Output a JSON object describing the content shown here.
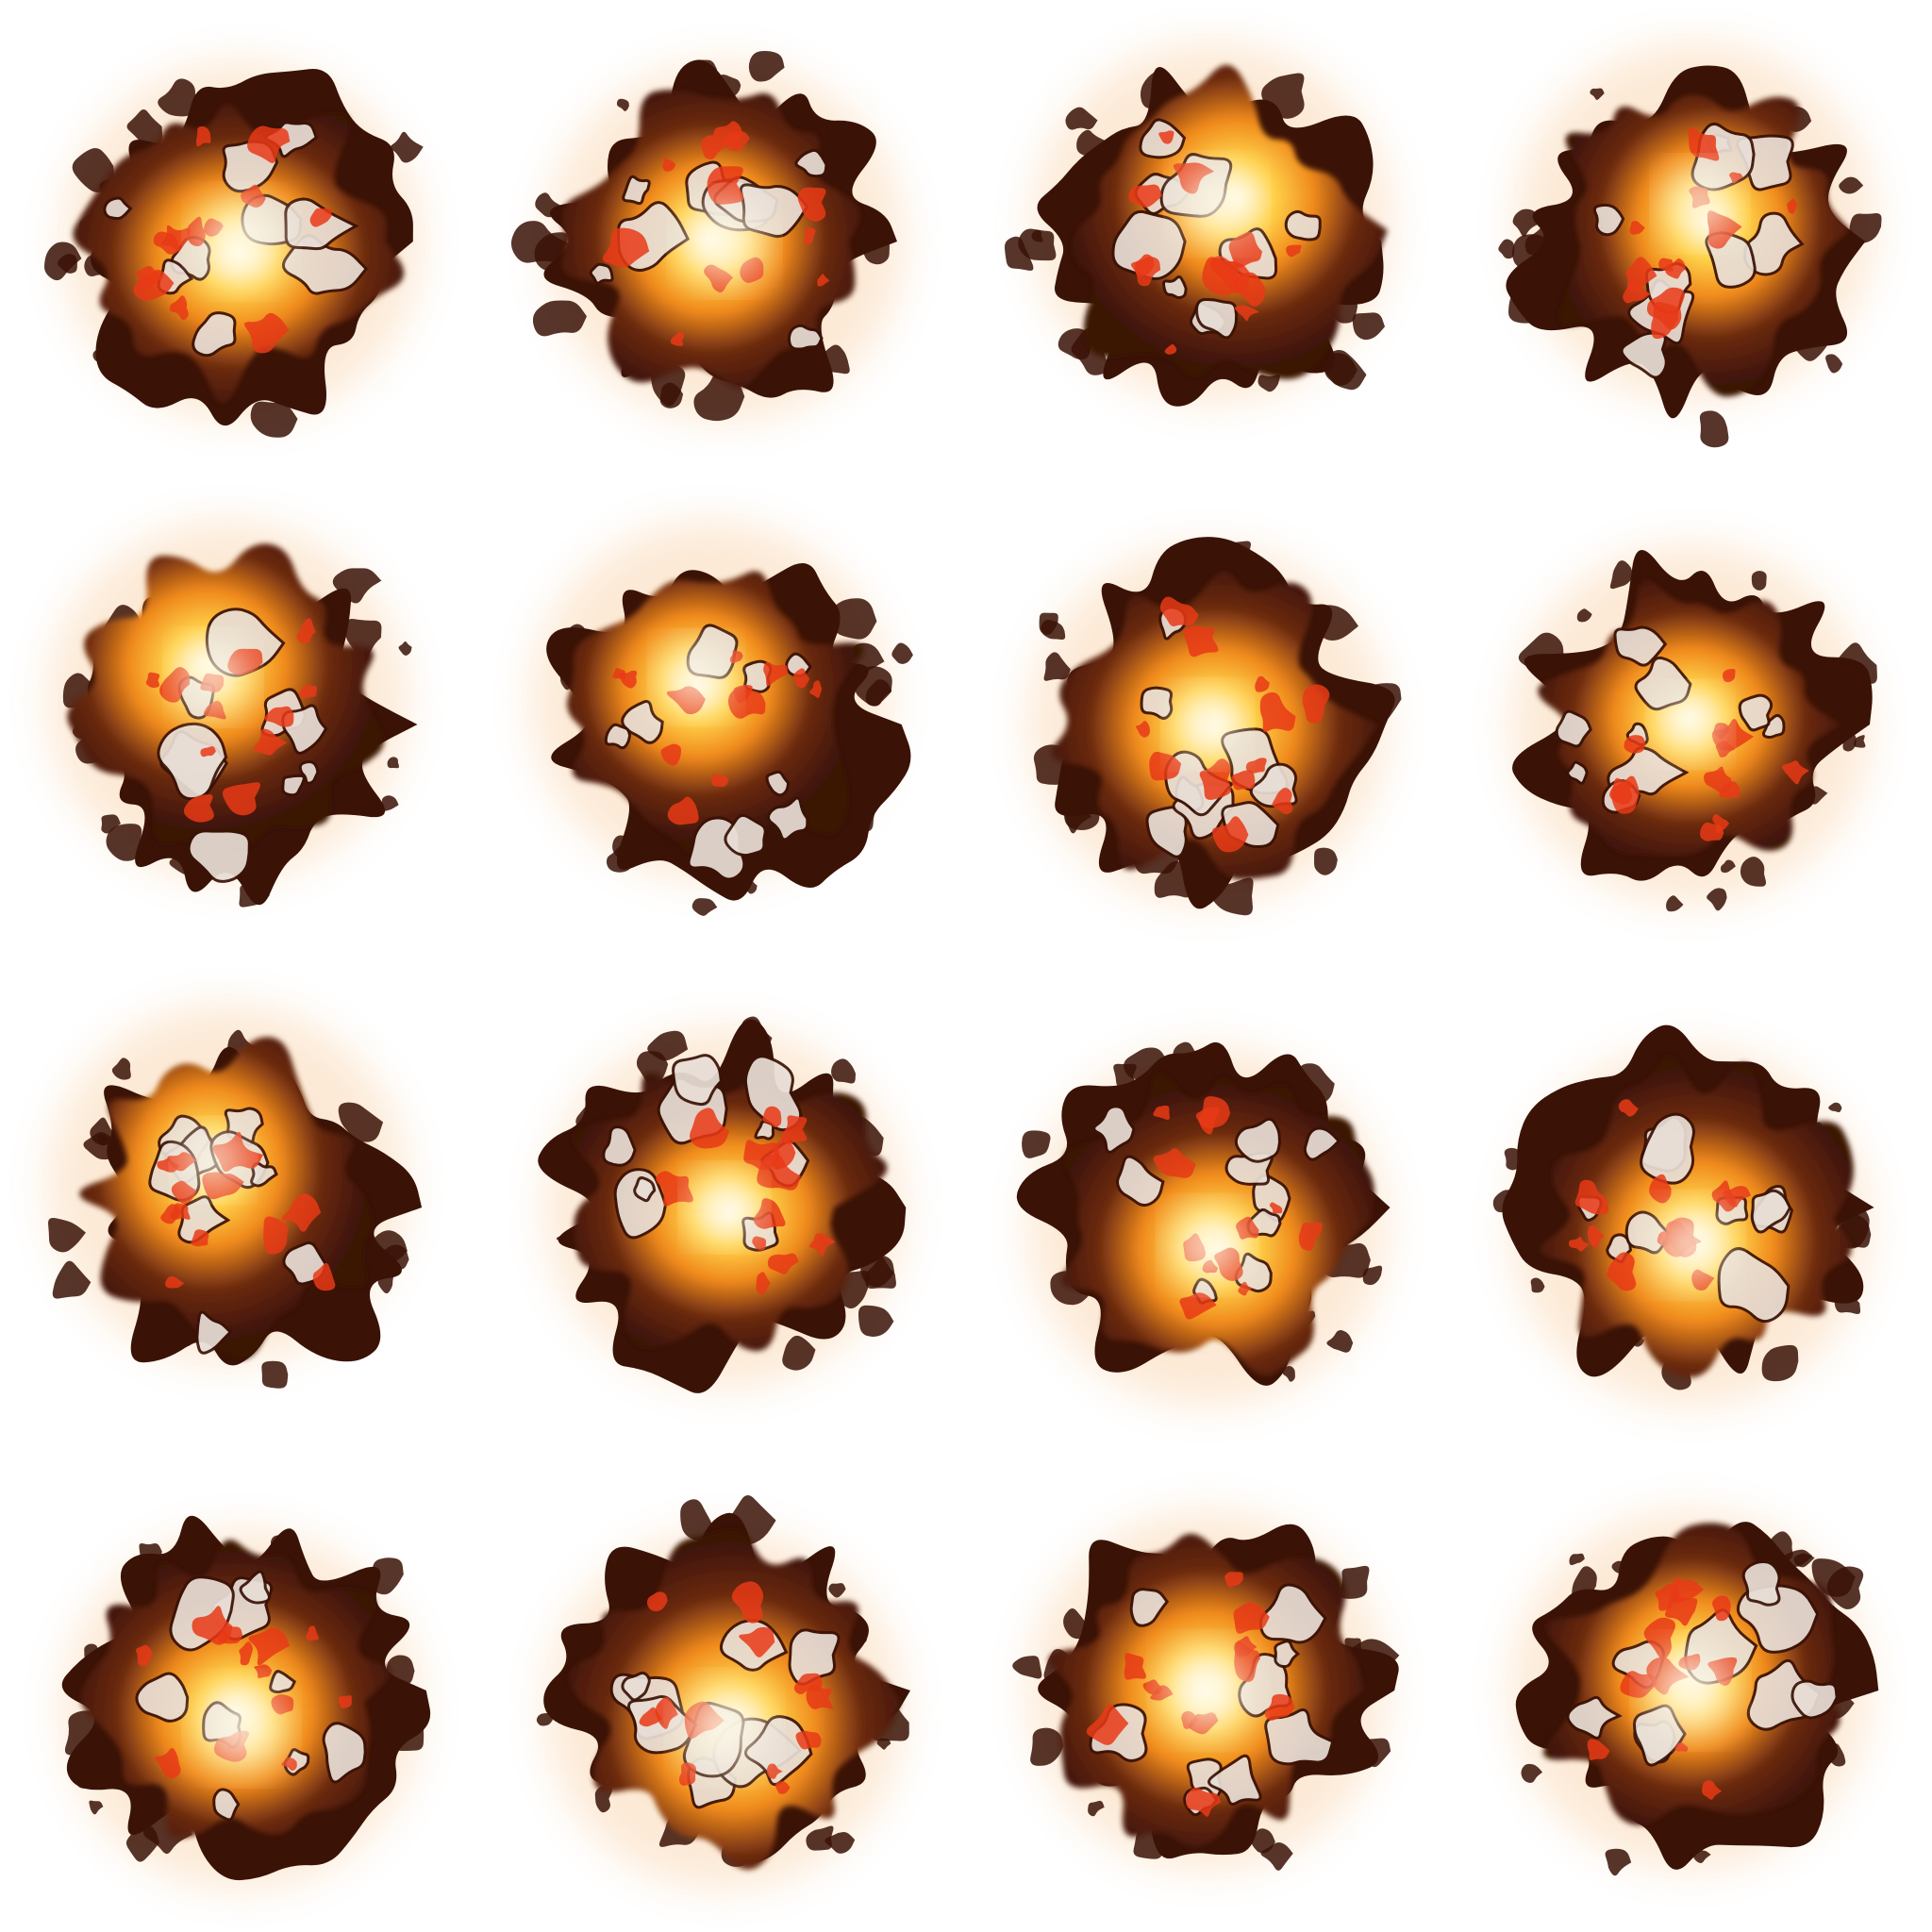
{
  "sprite_sheet": {
    "kind": "explosion-animation-sheet",
    "grid": {
      "columns": 4,
      "rows": 4
    },
    "frame_count": 16,
    "palette": {
      "background": "#ffffff",
      "core_white": "#fffbe8",
      "core_yellow": "#ffd24a",
      "flame_orange": "#f08a1c",
      "ember_red": "#e83a16",
      "char_dark": "#3a1206",
      "smoke_brown": "#6b2a10"
    },
    "frames": [
      {
        "index": 1,
        "intensity": 0.95,
        "glow": "center"
      },
      {
        "index": 2,
        "intensity": 0.92,
        "glow": "center"
      },
      {
        "index": 3,
        "intensity": 0.85,
        "glow": "upper-center"
      },
      {
        "index": 4,
        "intensity": 0.8,
        "glow": "upper-center"
      },
      {
        "index": 5,
        "intensity": 0.8,
        "glow": "upper-left"
      },
      {
        "index": 6,
        "intensity": 0.78,
        "glow": "upper-left"
      },
      {
        "index": 7,
        "intensity": 0.75,
        "glow": "center"
      },
      {
        "index": 8,
        "intensity": 0.72,
        "glow": "center"
      },
      {
        "index": 9,
        "intensity": 0.7,
        "glow": "upper-left"
      },
      {
        "index": 10,
        "intensity": 0.74,
        "glow": "center"
      },
      {
        "index": 11,
        "intensity": 0.82,
        "glow": "lower-center"
      },
      {
        "index": 12,
        "intensity": 0.88,
        "glow": "lower-center"
      },
      {
        "index": 13,
        "intensity": 0.95,
        "glow": "lower-center"
      },
      {
        "index": 14,
        "intensity": 0.96,
        "glow": "lower-center"
      },
      {
        "index": 15,
        "intensity": 0.97,
        "glow": "center"
      },
      {
        "index": 16,
        "intensity": 0.96,
        "glow": "center"
      }
    ]
  }
}
